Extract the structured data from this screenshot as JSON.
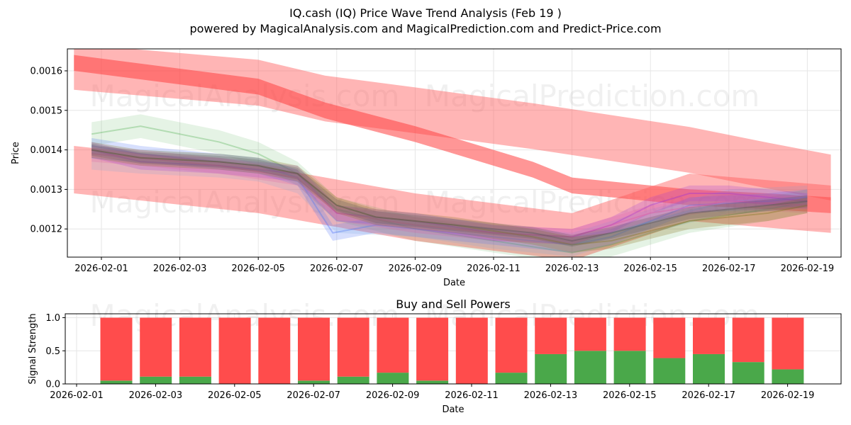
{
  "chart_data": [
    {
      "type": "area",
      "title": "IQ.cash (IQ) Price Wave Trend Analysis (Feb 19 )",
      "subtitle": "powered by MagicalAnalysis.com and MagicalPrediction.com and Predict-Price.com",
      "xlabel": "Date",
      "ylabel": "Price",
      "x_ticks": [
        "2026-02-01",
        "2026-02-03",
        "2026-02-05",
        "2026-02-07",
        "2026-02-09",
        "2026-02-11",
        "2026-02-13",
        "2026-02-15",
        "2026-02-17",
        "2026-02-19"
      ],
      "y_ticks": [
        "0.0012",
        "0.0013",
        "0.0014",
        "0.0015",
        "0.0016"
      ],
      "ylim": [
        0.00113,
        0.001655
      ],
      "grid": true,
      "watermarks": [
        "MagicalAnalysis.com",
        "MagicalPrediction.com",
        "MagicalAnalysis.com",
        "MagicalPrediction.com"
      ],
      "trend_bands": [
        {
          "name": "upper-trend-band",
          "x": [
            -0.7,
            4,
            5.7,
            8,
            11,
            13,
            15,
            17,
            18.6
          ],
          "center": [
            0.00161,
            0.00157,
            0.00153,
            0.0015,
            0.00146,
            0.00143,
            0.0014,
            0.00136,
            0.00133
          ],
          "half_width": 5.8e-05
        },
        {
          "name": "red-descending-wave",
          "x": [
            -0.7,
            4,
            5.7,
            8,
            11,
            12,
            13,
            15,
            17,
            18.6
          ],
          "center": [
            0.00162,
            0.00156,
            0.0015,
            0.00144,
            0.00135,
            0.00131,
            0.0013,
            0.00128,
            0.00127,
            0.00126
          ],
          "half_width": 2e-05
        },
        {
          "name": "lower-trend-band",
          "x": [
            -0.7,
            4,
            8,
            12,
            15,
            18.6
          ],
          "center": [
            0.00135,
            0.0013,
            0.00123,
            0.00118,
            0.00128,
            0.00125
          ],
          "half_width": 6e-05
        }
      ],
      "series": [
        {
          "name": "green-wave",
          "color": "#2ca02c",
          "opacity": 0.12,
          "band": 3e-05,
          "x": [
            -0.25,
            1,
            3,
            4,
            5,
            6,
            8,
            10,
            12,
            13,
            15,
            17,
            18
          ],
          "values": [
            0.00144,
            0.00146,
            0.00142,
            0.00139,
            0.00134,
            0.00125,
            0.0012,
            0.00117,
            0.00114,
            0.00116,
            0.00122,
            0.00125,
            0.00127
          ]
        },
        {
          "name": "blue-wave",
          "color": "#4a6cf7",
          "opacity": 0.22,
          "band": 2e-05,
          "x": [
            -0.25,
            1,
            3,
            4,
            5,
            5.9,
            7,
            9,
            11,
            12,
            13,
            15,
            17,
            18
          ],
          "values": [
            0.00141,
            0.00139,
            0.00137,
            0.00136,
            0.00133,
            0.00119,
            0.00121,
            0.00119,
            0.00117,
            0.00116,
            0.00118,
            0.00126,
            0.00127,
            0.00128
          ]
        },
        {
          "name": "light-blue-wave",
          "color": "#6fa8dc",
          "opacity": 0.18,
          "band": 3e-05,
          "x": [
            -0.25,
            1,
            3,
            4,
            5,
            6,
            8,
            10,
            12,
            14,
            16,
            18
          ],
          "values": [
            0.00138,
            0.00137,
            0.00136,
            0.00135,
            0.00132,
            0.00122,
            0.00121,
            0.00118,
            0.00116,
            0.00122,
            0.00127,
            0.00128
          ]
        },
        {
          "name": "purple-wave",
          "color": "#9b30d9",
          "opacity": 0.22,
          "band": 2e-05,
          "x": [
            -0.25,
            1,
            3,
            4,
            5,
            6,
            8,
            10,
            12,
            13,
            14,
            15,
            16,
            17,
            18
          ],
          "values": [
            0.0014,
            0.00137,
            0.00136,
            0.00135,
            0.00134,
            0.00124,
            0.00122,
            0.00119,
            0.00118,
            0.00121,
            0.00126,
            0.00129,
            0.00129,
            0.00128,
            0.00127
          ]
        },
        {
          "name": "pink-wave",
          "color": "#e04fa0",
          "opacity": 0.2,
          "band": 2e-05,
          "x": [
            -0.25,
            1,
            3,
            5,
            6,
            8,
            10,
            12,
            14,
            16,
            18
          ],
          "values": [
            0.00139,
            0.00138,
            0.00136,
            0.00133,
            0.00124,
            0.00121,
            0.00119,
            0.00118,
            0.00124,
            0.00127,
            0.00126
          ]
        },
        {
          "name": "olive-wave",
          "color": "#8c7a2a",
          "opacity": 0.28,
          "band": 2e-05,
          "x": [
            -0.25,
            1,
            3,
            4,
            5,
            6,
            7,
            9,
            11,
            12,
            13,
            15,
            17,
            18
          ],
          "values": [
            0.0014,
            0.00138,
            0.00137,
            0.00136,
            0.00134,
            0.00126,
            0.00123,
            0.00121,
            0.00118,
            0.00116,
            0.00117,
            0.00122,
            0.00124,
            0.00126
          ]
        },
        {
          "name": "gray-wave",
          "color": "#555555",
          "opacity": 0.25,
          "band": 1.5e-05,
          "x": [
            -0.25,
            1,
            3,
            4,
            5,
            6,
            7,
            9,
            11,
            12,
            13,
            15,
            17,
            18
          ],
          "values": [
            0.0014,
            0.00138,
            0.00137,
            0.00136,
            0.00134,
            0.00126,
            0.00123,
            0.00121,
            0.00119,
            0.00117,
            0.00119,
            0.00124,
            0.00126,
            0.00127
          ]
        }
      ]
    },
    {
      "type": "bar",
      "title": "Buy and Sell Powers",
      "xlabel": "Date",
      "ylabel": "Signal Strength",
      "x_ticks": [
        "2026-02-01",
        "2026-02-03",
        "2026-02-05",
        "2026-02-07",
        "2026-02-09",
        "2026-02-11",
        "2026-02-13",
        "2026-02-15",
        "2026-02-17",
        "2026-02-19"
      ],
      "y_ticks": [
        "0.0",
        "0.5",
        "1.0"
      ],
      "ylim": [
        0,
        1.05
      ],
      "grid": true,
      "watermarks": [
        "MagicalAnalysis.com",
        "MagicalPrediction.com"
      ],
      "categories": [
        "2026-02-02",
        "2026-02-03",
        "2026-02-04",
        "2026-02-05",
        "2026-02-06",
        "2026-02-07",
        "2026-02-08",
        "2026-02-09",
        "2026-02-10",
        "2026-02-11",
        "2026-02-12",
        "2026-02-13",
        "2026-02-14",
        "2026-02-15",
        "2026-02-16",
        "2026-02-17",
        "2026-02-18",
        "2026-02-19"
      ],
      "series": [
        {
          "name": "Buy",
          "color": "#4aa84a",
          "values": [
            0.05,
            0.11,
            0.11,
            0.0,
            0.0,
            0.05,
            0.11,
            0.17,
            0.05,
            0.0,
            0.17,
            0.45,
            0.5,
            0.5,
            0.39,
            0.45,
            0.33,
            0.22
          ]
        },
        {
          "name": "Sell",
          "color": "#ff4c4c",
          "values": [
            0.95,
            0.89,
            0.89,
            1.0,
            1.0,
            0.95,
            0.89,
            0.83,
            0.95,
            1.0,
            0.83,
            0.55,
            0.5,
            0.5,
            0.61,
            0.55,
            0.67,
            0.78
          ]
        }
      ]
    }
  ]
}
